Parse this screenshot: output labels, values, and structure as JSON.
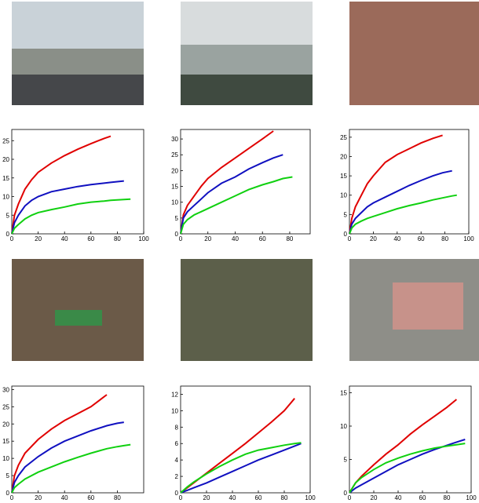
{
  "chart_data": [
    {
      "type": "line",
      "x": [
        0,
        2,
        5,
        10,
        15,
        20,
        30,
        40,
        50,
        60,
        70,
        75,
        80,
        85,
        90
      ],
      "series": [
        {
          "name": "red",
          "color": "#e00000",
          "values": [
            0,
            5,
            8,
            12,
            14.5,
            16.5,
            19,
            21,
            22.7,
            24.2,
            25.6,
            26.2,
            null,
            null,
            null
          ]
        },
        {
          "name": "blue",
          "color": "#1010c0",
          "values": [
            0,
            3,
            5,
            7.5,
            9,
            10,
            11.3,
            12,
            12.7,
            13.2,
            13.6,
            13.8,
            14,
            14.2,
            null
          ]
        },
        {
          "name": "green",
          "color": "#10d010",
          "values": [
            0,
            1.5,
            2.5,
            4,
            5,
            5.7,
            6.5,
            7.2,
            8,
            8.5,
            8.8,
            9,
            9.1,
            9.2,
            9.3
          ]
        }
      ],
      "xlim": [
        0,
        100
      ],
      "ylim": [
        0,
        28
      ],
      "xticks": [
        0,
        20,
        40,
        60,
        80,
        100
      ],
      "yticks": [
        0,
        5,
        10,
        15,
        20,
        25
      ]
    },
    {
      "type": "line",
      "x": [
        0,
        2,
        5,
        10,
        15,
        20,
        30,
        40,
        50,
        60,
        68,
        75,
        82
      ],
      "series": [
        {
          "name": "red",
          "color": "#e00000",
          "values": [
            0,
            6,
            9,
            12,
            15,
            17.5,
            21,
            24,
            27,
            30,
            32.5,
            null,
            null
          ]
        },
        {
          "name": "blue",
          "color": "#1010c0",
          "values": [
            0,
            5,
            7,
            9,
            11,
            13,
            16,
            18,
            20.5,
            22.5,
            24,
            25,
            null
          ]
        },
        {
          "name": "green",
          "color": "#10d010",
          "values": [
            0,
            3,
            4.5,
            6,
            7,
            8,
            10,
            12,
            14,
            15.5,
            16.5,
            17.5,
            18
          ]
        }
      ],
      "xlim": [
        0,
        95
      ],
      "ylim": [
        0,
        33
      ],
      "xticks": [
        0,
        20,
        40,
        60,
        80
      ],
      "yticks": [
        0,
        5,
        10,
        15,
        20,
        25,
        30
      ]
    },
    {
      "type": "line",
      "x": [
        0,
        2,
        5,
        10,
        15,
        20,
        30,
        40,
        50,
        60,
        70,
        78,
        86,
        90
      ],
      "series": [
        {
          "name": "red",
          "color": "#e00000",
          "values": [
            0,
            4,
            7,
            10,
            13,
            15,
            18.5,
            20.5,
            22,
            23.5,
            24.7,
            25.5,
            null,
            null
          ]
        },
        {
          "name": "blue",
          "color": "#1010c0",
          "values": [
            0,
            2.5,
            4,
            5.5,
            7,
            8,
            9.5,
            11,
            12.5,
            13.8,
            15,
            15.8,
            16.3,
            null
          ]
        },
        {
          "name": "green",
          "color": "#10d010",
          "values": [
            0,
            1.5,
            2.5,
            3.3,
            4,
            4.5,
            5.5,
            6.5,
            7.3,
            8,
            8.8,
            9.3,
            9.8,
            10
          ]
        }
      ],
      "xlim": [
        0,
        100
      ],
      "ylim": [
        0,
        27
      ],
      "xticks": [
        0,
        20,
        40,
        60,
        80,
        100
      ],
      "yticks": [
        0,
        5,
        10,
        15,
        20,
        25
      ]
    },
    {
      "type": "line",
      "x": [
        0,
        2,
        5,
        10,
        20,
        30,
        40,
        50,
        60,
        72,
        80,
        85,
        90
      ],
      "series": [
        {
          "name": "red",
          "color": "#e00000",
          "values": [
            0,
            5,
            8,
            11.5,
            15.5,
            18.5,
            21,
            23,
            25,
            28.5,
            null,
            null,
            null
          ]
        },
        {
          "name": "blue",
          "color": "#1010c0",
          "values": [
            0,
            3,
            5,
            7.5,
            10.5,
            13,
            15,
            16.5,
            18,
            19.5,
            20.2,
            20.5,
            null
          ]
        },
        {
          "name": "green",
          "color": "#10d010",
          "values": [
            0,
            1.5,
            2.5,
            4,
            6,
            7.5,
            9,
            10.3,
            11.5,
            12.8,
            13.4,
            13.7,
            14
          ]
        }
      ],
      "xlim": [
        0,
        100
      ],
      "ylim": [
        0,
        31
      ],
      "xticks": [
        0,
        20,
        40,
        60,
        80
      ],
      "yticks": [
        0,
        5,
        10,
        15,
        20,
        25,
        30
      ]
    },
    {
      "type": "line",
      "x": [
        0,
        5,
        10,
        20,
        30,
        40,
        50,
        60,
        70,
        80,
        88,
        93
      ],
      "series": [
        {
          "name": "red",
          "color": "#e00000",
          "values": [
            0,
            0.6,
            1.2,
            2.4,
            3.6,
            4.8,
            6,
            7.3,
            8.6,
            10,
            11.5,
            null
          ]
        },
        {
          "name": "blue",
          "color": "#1010c0",
          "values": [
            0,
            0.3,
            0.6,
            1.2,
            1.9,
            2.6,
            3.3,
            4,
            4.6,
            5.2,
            5.7,
            6
          ]
        },
        {
          "name": "green",
          "color": "#10d010",
          "values": [
            0,
            0.7,
            1.3,
            2.3,
            3.2,
            4,
            4.7,
            5.2,
            5.5,
            5.8,
            6,
            6.1
          ]
        }
      ],
      "xlim": [
        0,
        100
      ],
      "ylim": [
        0,
        13
      ],
      "xticks": [
        0,
        20,
        40,
        60,
        80,
        100
      ],
      "yticks": [
        0,
        2,
        4,
        6,
        8,
        10,
        12
      ]
    },
    {
      "type": "line",
      "x": [
        0,
        5,
        10,
        20,
        30,
        40,
        50,
        60,
        70,
        80,
        88,
        95
      ],
      "series": [
        {
          "name": "red",
          "color": "#e00000",
          "values": [
            0,
            1.5,
            2.5,
            4.2,
            5.8,
            7.2,
            8.8,
            10.2,
            11.5,
            12.8,
            14,
            null
          ]
        },
        {
          "name": "blue",
          "color": "#1010c0",
          "values": [
            0,
            0.7,
            1.2,
            2.2,
            3.2,
            4.2,
            5,
            5.8,
            6.5,
            7.1,
            7.6,
            8
          ]
        },
        {
          "name": "green",
          "color": "#10d010",
          "values": [
            0,
            1.5,
            2.3,
            3.5,
            4.5,
            5.2,
            5.8,
            6.3,
            6.7,
            7,
            7.2,
            7.4
          ]
        }
      ],
      "xlim": [
        0,
        100
      ],
      "ylim": [
        0,
        16
      ],
      "xticks": [
        0,
        20,
        40,
        60,
        80,
        100
      ],
      "yticks": [
        0,
        5,
        10,
        15
      ]
    }
  ]
}
